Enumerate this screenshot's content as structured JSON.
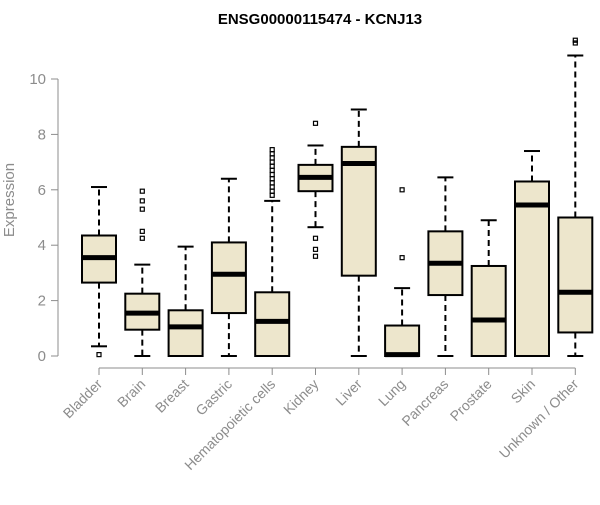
{
  "chart_data": {
    "type": "boxplot",
    "title": "ENSG00000115474 - KCNJ13",
    "xlabel": "",
    "ylabel": "Expression",
    "ylim": [
      0,
      11.3
    ],
    "yticks": [
      "0",
      "2",
      "4",
      "6",
      "8",
      "10"
    ],
    "categories": [
      "Bladder",
      "Brain",
      "Breast",
      "Gastric",
      "Hematopoietic cells",
      "Kidney",
      "Liver",
      "Lung",
      "Pancreas",
      "Prostate",
      "Skin",
      "Unknown / Other"
    ],
    "boxes": [
      {
        "whisker_low": 0.35,
        "q1": 2.65,
        "median": 3.55,
        "q3": 4.35,
        "whisker_high": 6.1,
        "outliers": [
          0.05
        ]
      },
      {
        "whisker_low": 0.0,
        "q1": 0.95,
        "median": 1.55,
        "q3": 2.25,
        "whisker_high": 3.3,
        "outliers": [
          4.25,
          4.5,
          5.3,
          5.6,
          5.95
        ]
      },
      {
        "whisker_low": 0.0,
        "q1": 0.0,
        "median": 1.05,
        "q3": 1.65,
        "whisker_high": 3.95,
        "outliers": []
      },
      {
        "whisker_low": 0.0,
        "q1": 1.55,
        "median": 2.95,
        "q3": 4.1,
        "whisker_high": 6.4,
        "outliers": []
      },
      {
        "whisker_low": 0.0,
        "q1": 0.0,
        "median": 1.25,
        "q3": 2.3,
        "whisker_high": 5.6,
        "outliers": [
          5.8,
          5.95,
          6.1,
          6.25,
          6.4,
          6.55,
          6.7,
          6.85,
          7.0,
          7.15,
          7.3,
          7.45
        ]
      },
      {
        "whisker_low": 4.65,
        "q1": 5.95,
        "median": 6.45,
        "q3": 6.9,
        "whisker_high": 7.6,
        "outliers": [
          3.6,
          3.85,
          4.25,
          8.4
        ]
      },
      {
        "whisker_low": 0.0,
        "q1": 2.9,
        "median": 6.95,
        "q3": 7.55,
        "whisker_high": 8.9,
        "outliers": []
      },
      {
        "whisker_low": 0.0,
        "q1": 0.0,
        "median": 0.05,
        "q3": 1.1,
        "whisker_high": 2.45,
        "outliers": [
          3.55,
          6.0
        ]
      },
      {
        "whisker_low": 0.0,
        "q1": 2.2,
        "median": 3.35,
        "q3": 4.5,
        "whisker_high": 6.45,
        "outliers": []
      },
      {
        "whisker_low": 0.0,
        "q1": 0.0,
        "median": 1.3,
        "q3": 3.25,
        "whisker_high": 4.9,
        "outliers": []
      },
      {
        "whisker_low": 0.0,
        "q1": 0.0,
        "median": 5.45,
        "q3": 6.3,
        "whisker_high": 7.4,
        "outliers": []
      },
      {
        "whisker_low": 0.0,
        "q1": 0.85,
        "median": 2.3,
        "q3": 5.0,
        "whisker_high": 10.85,
        "outliers": [
          11.3,
          11.4
        ]
      }
    ]
  }
}
